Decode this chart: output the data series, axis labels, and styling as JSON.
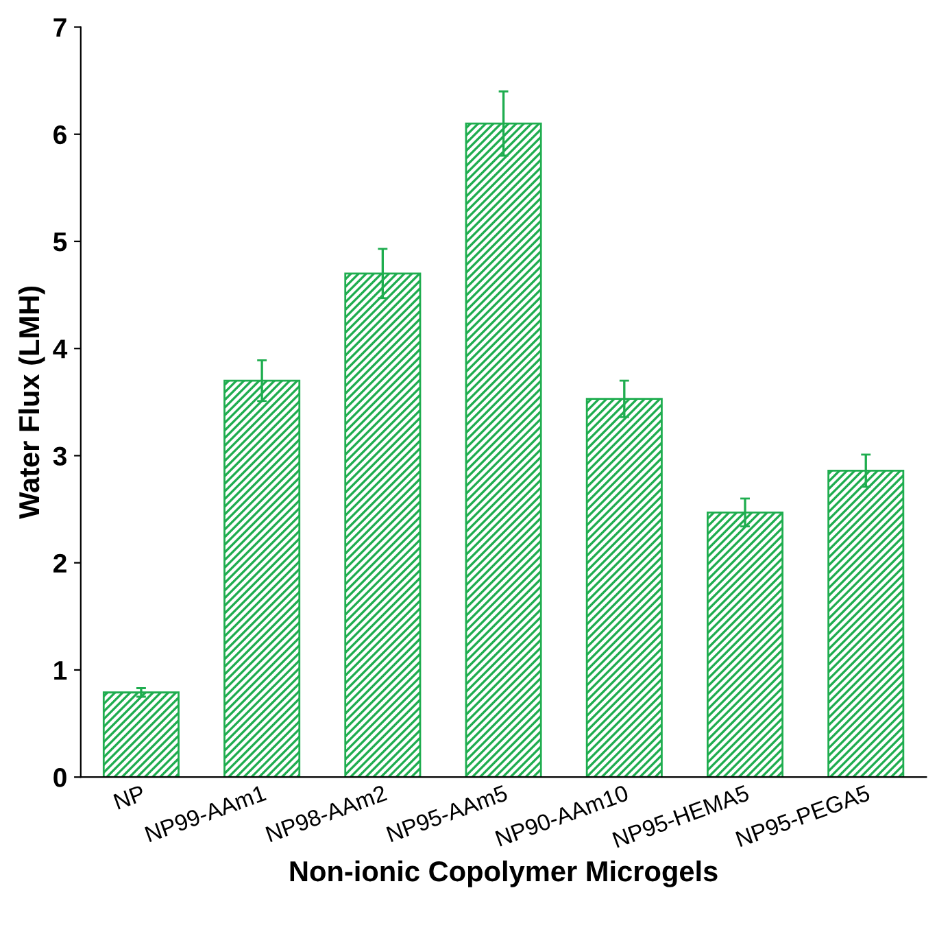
{
  "chart_data": {
    "type": "bar",
    "xlabel": "Non-ionic Copolymer Microgels",
    "ylabel": "Water Flux (LMH)",
    "categories": [
      "NP",
      "NP99-AAm1",
      "NP98-AAm2",
      "NP95-AAm5",
      "NP90-AAm10",
      "NP95-HEMA5",
      "NP95-PEGA5"
    ],
    "values": [
      0.79,
      3.7,
      4.7,
      6.1,
      3.53,
      2.47,
      2.86
    ],
    "errors": [
      0.04,
      0.19,
      0.23,
      0.3,
      0.17,
      0.13,
      0.15
    ],
    "color": "#1fad4f",
    "ylim": [
      0,
      7
    ],
    "yticks": [
      0,
      1,
      2,
      3,
      4,
      5,
      6,
      7
    ],
    "grid": false,
    "legend": false
  }
}
